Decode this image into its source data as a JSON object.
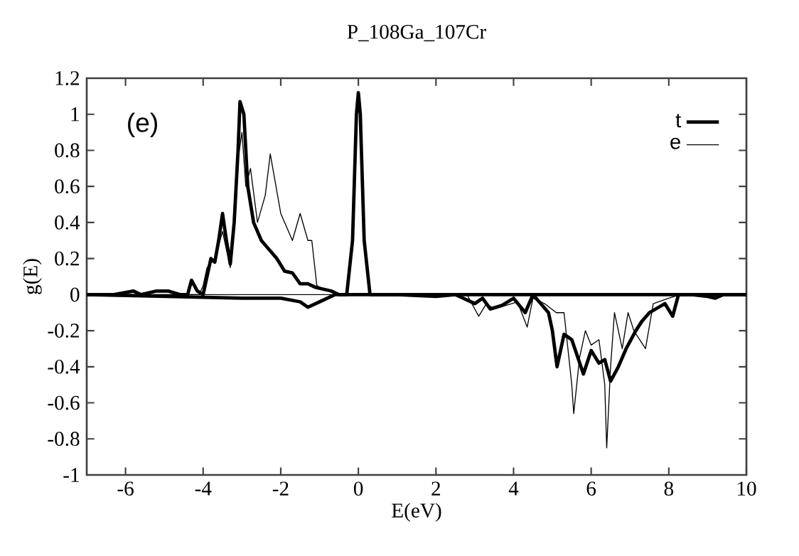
{
  "chart_data": {
    "type": "line",
    "title": "P_108Ga_107Cr",
    "xlabel": "E(eV)",
    "ylabel": "g(E)",
    "annotations": [
      "(e)"
    ],
    "xlim": [
      -7,
      10
    ],
    "ylim": [
      -1,
      1.2
    ],
    "xticks": [
      -6,
      -4,
      -2,
      0,
      2,
      4,
      6,
      8,
      10
    ],
    "yticks": [
      -1,
      -0.8,
      -0.6,
      -0.4,
      -0.2,
      0,
      0.2,
      0.4,
      0.6,
      0.8,
      1,
      1.2
    ],
    "legend": "top right",
    "grid": false,
    "marker": "none",
    "line_style": "solid",
    "series": [
      {
        "name": "t",
        "color": "#000000",
        "x": [
          -7,
          -6.3,
          -5.8,
          -5.6,
          -5.2,
          -4.9,
          -4.6,
          -4.4,
          -4.3,
          -4.15,
          -4.0,
          -3.9,
          -3.8,
          -3.7,
          -3.6,
          -3.5,
          -3.4,
          -3.3,
          -3.2,
          -3.1,
          -3.05,
          -2.95,
          -2.85,
          -2.7,
          -2.5,
          -2.3,
          -2.1,
          -1.9,
          -1.7,
          -1.5,
          -1.3,
          -1.1,
          -0.9,
          -0.7,
          -0.5,
          -0.3,
          -0.15,
          -0.05,
          0.0,
          0.05,
          0.15,
          0.3,
          1,
          3,
          5,
          7,
          10
        ],
        "values": [
          0,
          0,
          0.02,
          0,
          0.02,
          0.02,
          0,
          0,
          0.08,
          0.02,
          0,
          0.1,
          0.2,
          0.18,
          0.3,
          0.45,
          0.3,
          0.17,
          0.4,
          0.8,
          1.07,
          1.0,
          0.6,
          0.4,
          0.3,
          0.25,
          0.2,
          0.13,
          0.12,
          0.06,
          0.06,
          0.04,
          0.03,
          0.02,
          0,
          0,
          0.3,
          1.0,
          1.12,
          1.0,
          0.3,
          0,
          0,
          0,
          0,
          0,
          0
        ]
      },
      {
        "name": "e",
        "color": "#000000",
        "x": [
          -7,
          -4.1,
          -4.0,
          -3.9,
          -3.7,
          -3.5,
          -3.3,
          -3.1,
          -3.0,
          -2.9,
          -2.78,
          -2.6,
          -2.4,
          -2.27,
          -2.0,
          -1.8,
          -1.7,
          -1.5,
          -1.3,
          -1.2,
          -1.07,
          -0.9,
          -0.5,
          0,
          10
        ],
        "values": [
          0,
          0,
          0.05,
          0.15,
          0.2,
          0.35,
          0.15,
          0.75,
          0.9,
          0.6,
          0.7,
          0.4,
          0.55,
          0.78,
          0.45,
          0.35,
          0.3,
          0.45,
          0.3,
          0.3,
          0.05,
          0.03,
          0,
          0,
          0
        ]
      },
      {
        "color": "#000000",
        "x": [
          -7,
          -3,
          -2,
          -1.5,
          -1.3,
          -1.0,
          -0.6,
          0,
          1,
          2,
          2.5,
          2.7,
          3.0,
          3.2,
          3.4,
          3.7,
          4.0,
          4.3,
          4.5,
          4.7,
          4.9,
          5.0,
          5.12,
          5.3,
          5.5,
          5.8,
          6.0,
          6.2,
          6.35,
          6.5,
          6.7,
          6.9,
          7.15,
          7.3,
          7.5,
          7.9,
          8.1,
          8.25,
          8.6,
          9.0,
          9.2,
          9.4,
          10
        ],
        "values": [
          0,
          -0.02,
          -0.02,
          -0.04,
          -0.07,
          -0.04,
          0,
          0,
          0,
          -0.01,
          0,
          -0.02,
          -0.05,
          -0.02,
          -0.08,
          -0.06,
          -0.02,
          -0.1,
          0,
          -0.05,
          -0.1,
          -0.2,
          -0.4,
          -0.22,
          -0.25,
          -0.44,
          -0.31,
          -0.38,
          -0.36,
          -0.48,
          -0.4,
          -0.3,
          -0.2,
          -0.15,
          -0.1,
          -0.05,
          -0.12,
          0,
          0,
          -0.01,
          -0.02,
          0,
          0
        ]
      },
      {
        "color": "#000000",
        "x": [
          -7,
          -1,
          0,
          2.8,
          3.1,
          3.3,
          3.5,
          3.8,
          4.1,
          4.35,
          4.5,
          4.8,
          5.1,
          5.3,
          5.5,
          5.55,
          5.7,
          5.85,
          6.0,
          6.2,
          6.35,
          6.4,
          6.5,
          6.6,
          6.8,
          6.95,
          7.1,
          7.4,
          7.6,
          8.0,
          8.3,
          10
        ],
        "values": [
          0,
          0,
          0,
          0,
          -0.12,
          -0.05,
          -0.08,
          -0.06,
          -0.04,
          -0.18,
          -0.02,
          -0.05,
          -0.1,
          -0.1,
          -0.5,
          -0.66,
          -0.35,
          -0.2,
          -0.28,
          -0.25,
          -0.5,
          -0.85,
          -0.4,
          -0.1,
          -0.3,
          -0.1,
          -0.2,
          -0.3,
          -0.05,
          -0.02,
          0,
          0
        ]
      }
    ]
  }
}
